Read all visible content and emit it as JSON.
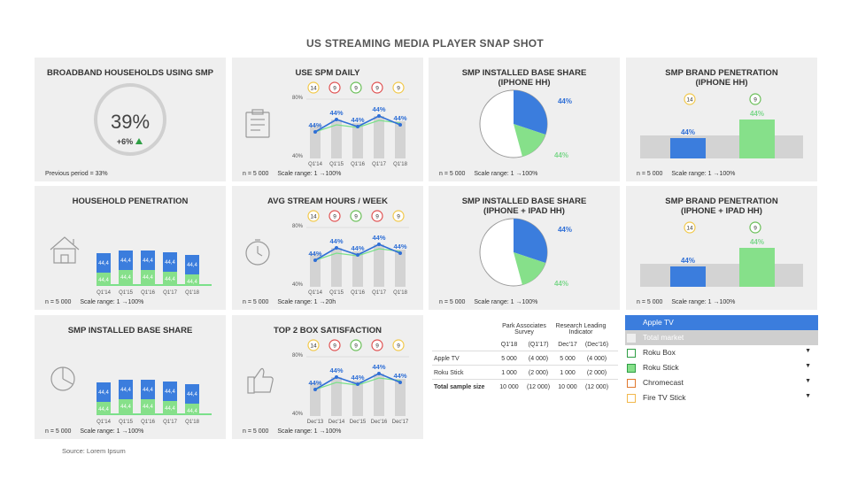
{
  "page_title": "US STREAMING MEDIA PLAYER SNAP SHOT",
  "source": "Source: Lorem Ipsum",
  "panels": {
    "broadband": {
      "title": "BROADBAND HOUSEHOLDS USING SMP",
      "value": "39%",
      "delta": "+6%",
      "footnote": "Previous period = 33%"
    },
    "use_daily": {
      "title": "USE SPM DAILY",
      "n": "n = 5 000",
      "scale": "Scale range: 1 →100%",
      "badges": [
        "14",
        "9",
        "9",
        "9",
        "9"
      ],
      "badge_colors": [
        "#f2c94c",
        "#e05252",
        "#6bbf59",
        "#e05252",
        "#f2c94c"
      ],
      "y_top": "80%",
      "y_bottom": "40%",
      "categories": [
        "Q1'14",
        "Q1'15",
        "Q1'16",
        "Q1'17",
        "Q1'18"
      ],
      "labels": [
        "44%",
        "44%",
        "44%",
        "44%",
        "44%"
      ]
    },
    "installed_iphone": {
      "title": "SMP INSTALLED BASE SHARE",
      "subtitle": "(IPHONE HH)",
      "labels": [
        "44%",
        "44%"
      ],
      "n": "n = 5 000",
      "scale": "Scale range: 1 →100%"
    },
    "brand_iphone": {
      "title": "SMP BRAND PENETRATION",
      "subtitle": "(IPHONE HH)",
      "badges": [
        "14",
        "9"
      ],
      "labels": [
        "44%",
        "44%"
      ],
      "n": "n = 5 000",
      "scale": "Scale range: 1 →100%"
    },
    "household": {
      "title": "HOUSEHOLD PENETRATION",
      "categories": [
        "Q1'14",
        "Q1'15",
        "Q1'16",
        "Q1'17",
        "Q1'18"
      ],
      "bar_label": "44,4",
      "n": "n = 5 000",
      "scale": "Scale range: 1 →100%"
    },
    "avg_stream": {
      "title": "AVG STREAM HOURS / WEEK",
      "badges": [
        "14",
        "9",
        "9",
        "9",
        "9"
      ],
      "badge_colors": [
        "#f2c94c",
        "#e05252",
        "#6bbf59",
        "#e05252",
        "#f2c94c"
      ],
      "y_top": "80%",
      "y_bottom": "40%",
      "categories": [
        "Q1'14",
        "Q1'15",
        "Q1'16",
        "Q1'17",
        "Q1'18"
      ],
      "labels": [
        "44%",
        "44%",
        "44%",
        "44%",
        "44%"
      ],
      "n": "n = 5 000",
      "scale": "Scale range: 1 →20h"
    },
    "installed_ipad": {
      "title": "SMP INSTALLED BASE SHARE",
      "subtitle": "(IPHONE + IPAD HH)",
      "labels": [
        "44%",
        "44%"
      ],
      "n": "n = 5 000",
      "scale": "Scale range: 1 →100%"
    },
    "brand_ipad": {
      "title": "SMP BRAND PENETRATION",
      "subtitle": "(IPHONE + IPAD HH)",
      "badges": [
        "14",
        "9"
      ],
      "labels": [
        "44%",
        "44%"
      ],
      "n": "n = 5 000",
      "scale": "Scale range: 1 →100%"
    },
    "installed": {
      "title": "SMP INSTALLED BASE SHARE",
      "categories": [
        "Q1'14",
        "Q1'15",
        "Q1'16",
        "Q1'17",
        "Q1'18"
      ],
      "bar_label": "44,4",
      "n": "n = 5 000",
      "scale": "Scale range: 1 →100%"
    },
    "top2": {
      "title": "TOP 2 BOX SATISFACTION",
      "badges": [
        "14",
        "9",
        "9",
        "9",
        "9"
      ],
      "badge_colors": [
        "#f2c94c",
        "#e05252",
        "#6bbf59",
        "#e05252",
        "#f2c94c"
      ],
      "y_top": "80%",
      "y_bottom": "40%",
      "categories": [
        "Dec'13",
        "Dec'14",
        "Dec'15",
        "Dec'16",
        "Dec'17"
      ],
      "labels": [
        "44%",
        "44%",
        "44%",
        "44%",
        "44%"
      ],
      "n": "n = 5 000",
      "scale": "Scale range: 1 →100%"
    }
  },
  "table": {
    "group1": "Park Associates Survey",
    "group2": "Research Leading Indicator",
    "periods": [
      "Q1'18",
      "(Q1'17)",
      "Dec'17",
      "(Dec'16)"
    ],
    "rows": [
      {
        "label": "Apple TV",
        "values": [
          "5 000",
          "(4 000)",
          "5 000",
          "(4 000)"
        ]
      },
      {
        "label": "Roku Stick",
        "values": [
          "1 000",
          "(2 000)",
          "1 000",
          "(2 000)"
        ]
      },
      {
        "label": "Total sample size",
        "values": [
          "10 000",
          "(12 000)",
          "10 000",
          "(12 000)"
        ]
      }
    ]
  },
  "legend": [
    {
      "label": "Apple TV",
      "color": "#3b7ddd",
      "style": "filled-row"
    },
    {
      "label": "Total market",
      "color": "#cfcfcf",
      "style": "filled-row"
    },
    {
      "label": "Roku Box",
      "color": "#2e9e44",
      "style": "outline",
      "dropdown": true
    },
    {
      "label": "Roku  Stick",
      "color": "#86e08a",
      "style": "outline-fill",
      "dropdown": true
    },
    {
      "label": "Chromecast",
      "color": "#e0782e",
      "style": "outline",
      "dropdown": true
    },
    {
      "label": "Fire TV Stick",
      "color": "#f2b84c",
      "style": "outline",
      "dropdown": true
    }
  ],
  "chart_data": [
    {
      "type": "line",
      "title": "USE SPM DAILY",
      "categories": [
        "Q1'14",
        "Q1'15",
        "Q1'16",
        "Q1'17",
        "Q1'18"
      ],
      "series": [
        {
          "values": [
            44,
            44,
            44,
            44,
            44
          ]
        }
      ]
    },
    {
      "type": "bar",
      "title": "HOUSEHOLD PENETRATION",
      "categories": [
        "Q1'14",
        "Q1'15",
        "Q1'16",
        "Q1'17",
        "Q1'18"
      ],
      "series": [
        {
          "values": [
            44.4,
            44.4,
            44.4,
            44.4,
            44.4
          ]
        },
        {
          "values": [
            44.4,
            44.4,
            44.4,
            44.4,
            44.4
          ]
        }
      ]
    },
    {
      "type": "pie",
      "title": "SMP INSTALLED BASE SHARE (IPHONE HH)",
      "values": [
        44,
        44
      ]
    },
    {
      "type": "bar",
      "title": "SMP BRAND PENETRATION (IPHONE HH)",
      "values": [
        44,
        44
      ]
    }
  ]
}
